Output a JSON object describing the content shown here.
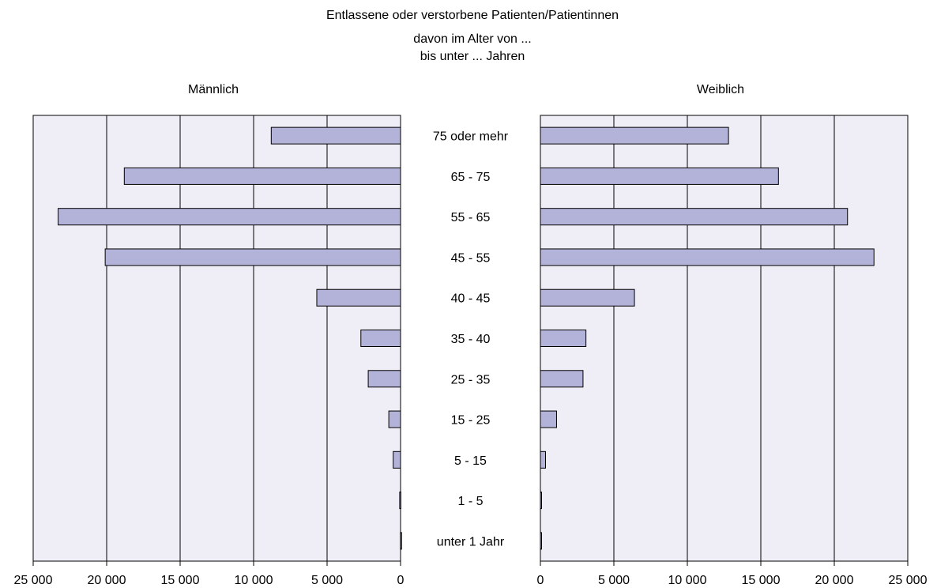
{
  "chart_data": {
    "type": "bar",
    "orientation": "horizontal",
    "layout": "population-pyramid",
    "title": "Entlassene oder verstorbene  Patienten/Patientinnen",
    "subtitle_line1": "davon  im Alter von ...",
    "subtitle_line2": "bis unter ... Jahren",
    "categories": [
      "75 oder mehr",
      "65 - 75",
      "55 - 65",
      "45 - 55",
      "40 - 45",
      "35 - 40",
      "25 - 35",
      "15 - 25",
      "5 - 15",
      "1 - 5",
      "unter 1 Jahr"
    ],
    "series": [
      {
        "name": "Männlich",
        "values": [
          8800,
          18800,
          23300,
          20100,
          5700,
          2700,
          2200,
          800,
          500,
          60,
          10
        ]
      },
      {
        "name": "Weiblich",
        "values": [
          12800,
          16200,
          20900,
          22700,
          6400,
          3100,
          2900,
          1100,
          350,
          80,
          50
        ]
      }
    ],
    "xlim": [
      0,
      25000
    ],
    "tick_values": [
      25000,
      20000,
      15000,
      10000,
      5000,
      0
    ],
    "tick_labels_left": [
      "25 000",
      "20 000",
      "15 000",
      "10 000",
      "5 000",
      "0"
    ],
    "tick_labels_right": [
      "0",
      "5 000",
      "10 000",
      "15 000",
      "20 000",
      "25 000"
    ],
    "grid": true,
    "colors": {
      "bar_fill": "#b3b3d9",
      "plot_bg": "#efeef6",
      "grid": "#000000"
    }
  }
}
